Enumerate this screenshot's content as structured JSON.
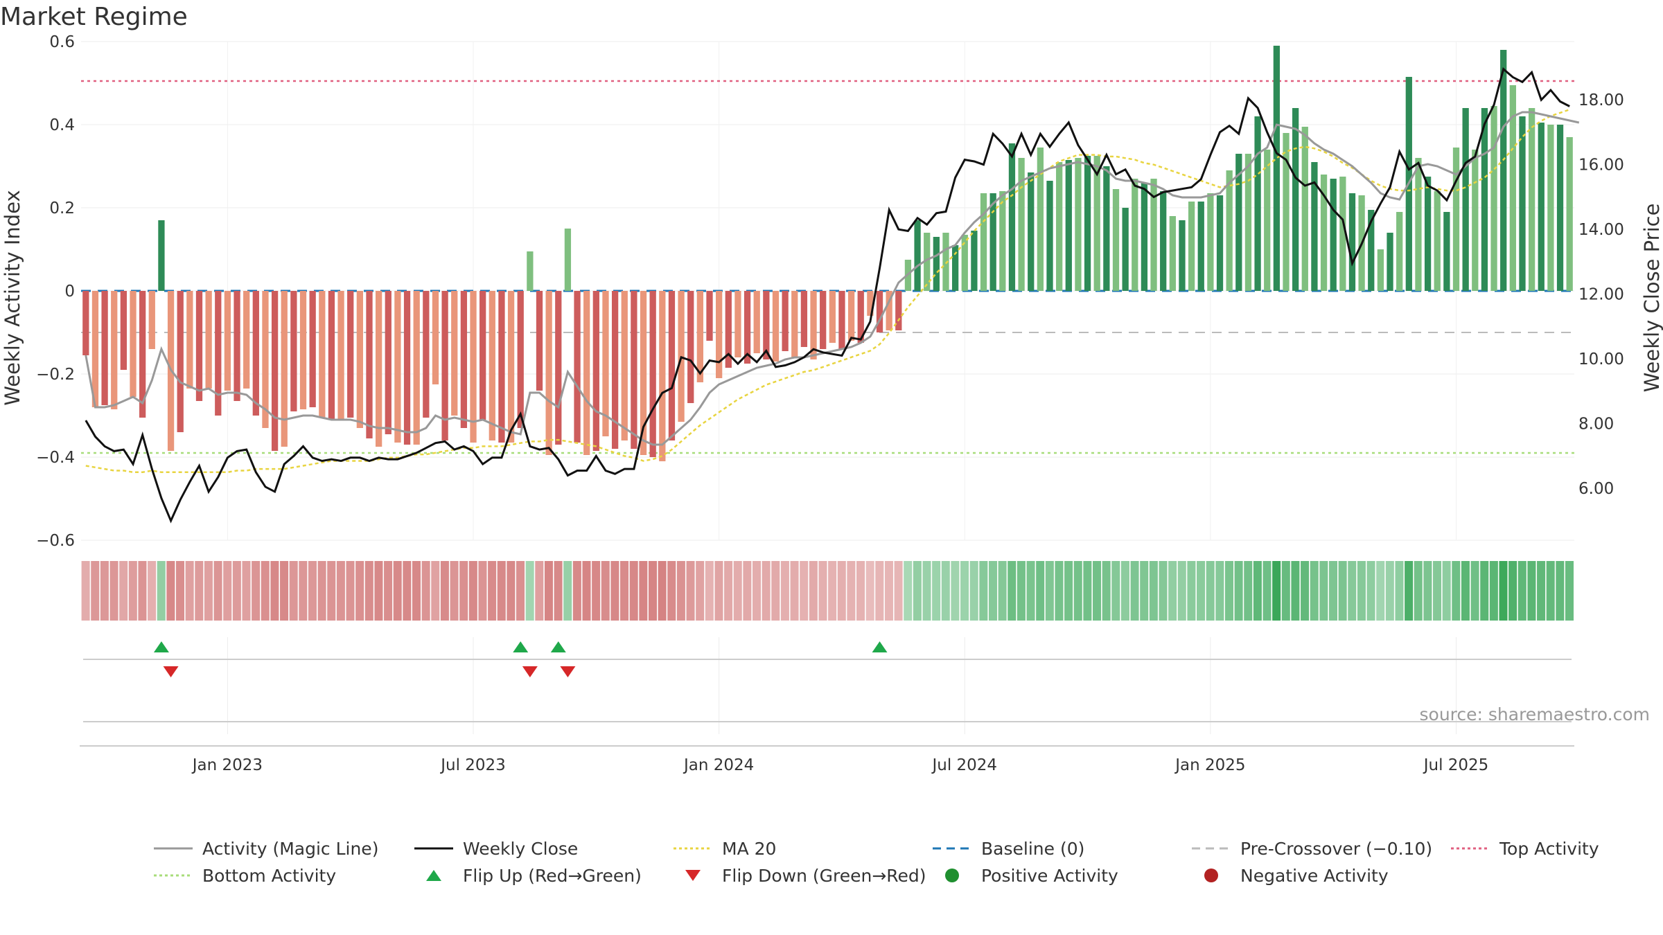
{
  "title": "Market Regime",
  "source": "source: sharemaestro.com",
  "colors": {
    "pos_dark": "#2e8b57",
    "pos_light": "#7fbf7f",
    "neg_dark": "#cd5c5c",
    "neg_light": "#e9967a",
    "activity_line": "#999999",
    "weekly_close": "#111111",
    "ma20": "#e8d440",
    "baseline": "#1f77b4",
    "pre_crossover": "#bbbbbb",
    "top_activity": "#e06080",
    "bottom_activity": "#a8dd7a",
    "flip_up": "#1fa84a",
    "flip_down": "#d62728",
    "positive_dot": "#1f8f2f",
    "negative_dot": "#b22222"
  },
  "chart_data": {
    "type": "bar",
    "title": "Market Regime",
    "ylabel": "Weekly Activity Index",
    "y2label": "Weekly Close Price",
    "ylim": [
      -0.6,
      0.6
    ],
    "y2lim": [
      4.4,
      19.8
    ],
    "yticks": [
      "0.6",
      "0.4",
      "0.2",
      "0",
      "−0.2",
      "−0.4",
      "−0.6"
    ],
    "y2ticks": [
      "18.00",
      "16.00",
      "14.00",
      "12.00",
      "10.00",
      "8.00",
      "6.00"
    ],
    "y2tick_values": [
      18,
      16,
      14,
      12,
      10,
      8,
      6
    ],
    "xticks": [
      "Jan 2023",
      "Jul 2023",
      "Jan 2024",
      "Jul 2024",
      "Jan 2025",
      "Jul 2025"
    ],
    "xtick_weeks": [
      15,
      41,
      67,
      93,
      119,
      145
    ],
    "start_week_label": "Sep 2022",
    "grid": true,
    "legend_position": "bottom",
    "activity_index": [
      -0.155,
      -0.28,
      -0.275,
      -0.285,
      -0.19,
      -0.255,
      -0.305,
      -0.14,
      0.17,
      -0.385,
      -0.34,
      -0.235,
      -0.265,
      -0.235,
      -0.3,
      -0.24,
      -0.265,
      -0.235,
      -0.3,
      -0.33,
      -0.385,
      -0.375,
      -0.29,
      -0.285,
      -0.28,
      -0.305,
      -0.31,
      -0.31,
      -0.305,
      -0.33,
      -0.355,
      -0.375,
      -0.345,
      -0.365,
      -0.37,
      -0.37,
      -0.305,
      -0.225,
      -0.36,
      -0.3,
      -0.33,
      -0.365,
      -0.31,
      -0.36,
      -0.365,
      -0.365,
      -0.33,
      0.095,
      -0.24,
      -0.395,
      -0.37,
      0.15,
      -0.365,
      -0.395,
      -0.385,
      -0.35,
      -0.38,
      -0.36,
      -0.38,
      -0.395,
      -0.4,
      -0.41,
      -0.36,
      -0.315,
      -0.27,
      -0.22,
      -0.12,
      -0.21,
      -0.185,
      -0.16,
      -0.175,
      -0.15,
      -0.165,
      -0.17,
      -0.145,
      -0.16,
      -0.135,
      -0.165,
      -0.14,
      -0.125,
      -0.14,
      -0.12,
      -0.125,
      -0.06,
      -0.1,
      -0.095,
      -0.095,
      0.075,
      0.17,
      0.14,
      0.13,
      0.14,
      0.11,
      0.135,
      0.145,
      0.235,
      0.235,
      0.24,
      0.355,
      0.32,
      0.285,
      0.345,
      0.265,
      0.31,
      0.315,
      0.32,
      0.325,
      0.325,
      0.3,
      0.245,
      0.2,
      0.27,
      0.26,
      0.27,
      0.24,
      0.18,
      0.17,
      0.215,
      0.215,
      0.235,
      0.23,
      0.29,
      0.33,
      0.33,
      0.42,
      0.34,
      0.59,
      0.38,
      0.44,
      0.395,
      0.31,
      0.28,
      0.27,
      0.275,
      0.235,
      0.23,
      0.195,
      0.1,
      0.14,
      0.19,
      0.515,
      0.32,
      0.275,
      0.24,
      0.19,
      0.345,
      0.44,
      0.34,
      0.44,
      0.445,
      0.58,
      0.495,
      0.42,
      0.44,
      0.405,
      0.4,
      0.4,
      0.37
    ],
    "weekly_close": [
      8.1,
      7.6,
      7.3,
      7.15,
      7.2,
      6.75,
      7.65,
      6.6,
      5.7,
      5.0,
      5.65,
      6.2,
      6.7,
      5.9,
      6.35,
      6.95,
      7.15,
      7.2,
      6.5,
      6.05,
      5.9,
      6.75,
      7.0,
      7.3,
      6.95,
      6.85,
      6.9,
      6.85,
      6.95,
      6.95,
      6.85,
      6.95,
      6.9,
      6.9,
      7.0,
      7.1,
      7.25,
      7.4,
      7.45,
      7.2,
      7.3,
      7.15,
      6.75,
      6.95,
      6.95,
      7.8,
      8.3,
      7.3,
      7.2,
      7.25,
      6.9,
      6.4,
      6.55,
      6.55,
      7.0,
      6.55,
      6.45,
      6.6,
      6.6,
      7.9,
      8.45,
      8.95,
      9.1,
      10.05,
      9.95,
      9.55,
      9.95,
      9.9,
      10.15,
      9.85,
      10.15,
      9.9,
      10.25,
      9.75,
      9.8,
      9.9,
      10.05,
      10.3,
      10.2,
      10.15,
      10.1,
      10.65,
      10.6,
      11.15,
      12.8,
      14.6,
      14.0,
      13.95,
      14.35,
      14.15,
      14.5,
      14.55,
      15.6,
      16.15,
      16.1,
      16.0,
      16.95,
      16.65,
      16.25,
      16.95,
      16.3,
      16.95,
      16.55,
      16.95,
      17.3,
      16.6,
      16.15,
      15.7,
      16.3,
      15.7,
      15.85,
      15.35,
      15.25,
      15.0,
      15.15,
      15.2,
      15.25,
      15.3,
      15.55,
      16.3,
      17.0,
      17.2,
      16.95,
      18.05,
      17.75,
      17.0,
      16.35,
      16.15,
      15.6,
      15.35,
      15.45,
      15.05,
      14.6,
      14.3,
      12.95,
      13.55,
      14.25,
      14.8,
      15.3,
      16.4,
      15.85,
      16.05,
      15.35,
      15.2,
      14.9,
      15.5,
      16.05,
      16.25,
      17.25,
      17.85,
      18.95,
      18.7,
      18.55,
      18.85,
      18.0,
      18.3,
      17.95,
      17.8
    ],
    "magic_line": [
      -0.155,
      -0.28,
      -0.28,
      -0.275,
      -0.265,
      -0.255,
      -0.27,
      -0.215,
      -0.14,
      -0.19,
      -0.22,
      -0.23,
      -0.24,
      -0.235,
      -0.25,
      -0.245,
      -0.245,
      -0.25,
      -0.27,
      -0.285,
      -0.305,
      -0.31,
      -0.305,
      -0.3,
      -0.3,
      -0.305,
      -0.31,
      -0.31,
      -0.31,
      -0.315,
      -0.325,
      -0.33,
      -0.33,
      -0.335,
      -0.34,
      -0.34,
      -0.33,
      -0.3,
      -0.31,
      -0.305,
      -0.31,
      -0.315,
      -0.31,
      -0.32,
      -0.33,
      -0.34,
      -0.345,
      -0.245,
      -0.245,
      -0.265,
      -0.28,
      -0.195,
      -0.23,
      -0.265,
      -0.29,
      -0.3,
      -0.315,
      -0.33,
      -0.345,
      -0.36,
      -0.37,
      -0.37,
      -0.35,
      -0.33,
      -0.31,
      -0.28,
      -0.245,
      -0.225,
      -0.215,
      -0.205,
      -0.195,
      -0.185,
      -0.18,
      -0.175,
      -0.165,
      -0.16,
      -0.16,
      -0.155,
      -0.15,
      -0.145,
      -0.14,
      -0.135,
      -0.125,
      -0.11,
      -0.07,
      -0.025,
      0.02,
      0.04,
      0.06,
      0.075,
      0.085,
      0.1,
      0.11,
      0.14,
      0.165,
      0.185,
      0.21,
      0.23,
      0.245,
      0.265,
      0.275,
      0.285,
      0.295,
      0.3,
      0.305,
      0.31,
      0.305,
      0.3,
      0.29,
      0.27,
      0.265,
      0.265,
      0.26,
      0.255,
      0.245,
      0.23,
      0.225,
      0.225,
      0.225,
      0.23,
      0.235,
      0.26,
      0.28,
      0.3,
      0.33,
      0.345,
      0.4,
      0.395,
      0.39,
      0.375,
      0.355,
      0.34,
      0.33,
      0.315,
      0.3,
      0.28,
      0.26,
      0.235,
      0.225,
      0.22,
      0.26,
      0.3,
      0.305,
      0.3,
      0.29,
      0.28,
      0.3,
      0.32,
      0.33,
      0.345,
      0.395,
      0.42,
      0.43,
      0.43,
      0.425,
      0.42,
      0.415,
      0.41,
      0.405
    ],
    "ma20": [
      6.7,
      6.65,
      6.6,
      6.55,
      6.55,
      6.5,
      6.5,
      6.55,
      6.5,
      6.5,
      6.5,
      6.5,
      6.5,
      6.5,
      6.5,
      6.5,
      6.55,
      6.55,
      6.6,
      6.6,
      6.6,
      6.6,
      6.65,
      6.7,
      6.75,
      6.8,
      6.85,
      6.85,
      6.85,
      6.85,
      6.85,
      6.9,
      6.95,
      6.95,
      7.0,
      7.05,
      7.05,
      7.1,
      7.15,
      7.2,
      7.25,
      7.25,
      7.3,
      7.3,
      7.3,
      7.35,
      7.4,
      7.45,
      7.45,
      7.5,
      7.5,
      7.45,
      7.4,
      7.35,
      7.3,
      7.2,
      7.1,
      7.0,
      6.95,
      6.85,
      6.9,
      7.0,
      7.2,
      7.45,
      7.7,
      7.95,
      8.15,
      8.35,
      8.55,
      8.75,
      8.9,
      9.05,
      9.2,
      9.3,
      9.4,
      9.5,
      9.6,
      9.65,
      9.75,
      9.85,
      9.95,
      10.05,
      10.15,
      10.25,
      10.45,
      10.8,
      11.2,
      11.6,
      11.95,
      12.3,
      12.65,
      12.95,
      13.25,
      13.6,
      13.95,
      14.25,
      14.55,
      14.85,
      15.05,
      15.3,
      15.5,
      15.7,
      15.9,
      16.1,
      16.2,
      16.3,
      16.3,
      16.3,
      16.25,
      16.25,
      16.2,
      16.15,
      16.05,
      16.0,
      15.9,
      15.8,
      15.7,
      15.6,
      15.5,
      15.4,
      15.3,
      15.35,
      15.4,
      15.5,
      15.7,
      15.95,
      16.2,
      16.4,
      16.5,
      16.55,
      16.5,
      16.4,
      16.25,
      16.05,
      15.9,
      15.7,
      15.5,
      15.35,
      15.25,
      15.2,
      15.2,
      15.25,
      15.3,
      15.25,
      15.2,
      15.2,
      15.3,
      15.45,
      15.6,
      15.85,
      16.15,
      16.5,
      16.85,
      17.15,
      17.35,
      17.5,
      17.6,
      17.7
    ],
    "baseline_value": 0,
    "pre_crossover_value": -0.1,
    "top_activity_value": 0.505,
    "bottom_activity_value": -0.39,
    "flip_up_weeks": [
      8,
      46,
      50,
      84
    ],
    "flip_down_weeks": [
      9,
      47,
      51
    ],
    "legend": [
      {
        "label": "Activity (Magic Line)",
        "kind": "line",
        "color": "#999999",
        "dash": ""
      },
      {
        "label": "Weekly Close",
        "kind": "line",
        "color": "#111111",
        "dash": ""
      },
      {
        "label": "MA 20",
        "kind": "line",
        "color": "#e8d440",
        "dash": "4,4"
      },
      {
        "label": "Baseline (0)",
        "kind": "line",
        "color": "#1f77b4",
        "dash": "12,8"
      },
      {
        "label": "Pre-Crossover (−0.10)",
        "kind": "line",
        "color": "#bbbbbb",
        "dash": "12,8"
      },
      {
        "label": "Top Activity",
        "kind": "line",
        "color": "#e06080",
        "dash": "4,4"
      },
      {
        "label": "Bottom Activity",
        "kind": "line",
        "color": "#a8dd7a",
        "dash": "4,4"
      },
      {
        "label": "Flip Up (Red→Green)",
        "kind": "tri-up",
        "color": "#1fa84a",
        "dash": ""
      },
      {
        "label": "Flip Down (Green→Red)",
        "kind": "tri-down",
        "color": "#d62728",
        "dash": ""
      },
      {
        "label": "Positive Activity",
        "kind": "dot",
        "color": "#1f8f2f",
        "dash": ""
      },
      {
        "label": "Negative Activity",
        "kind": "dot",
        "color": "#b22222",
        "dash": ""
      }
    ]
  }
}
